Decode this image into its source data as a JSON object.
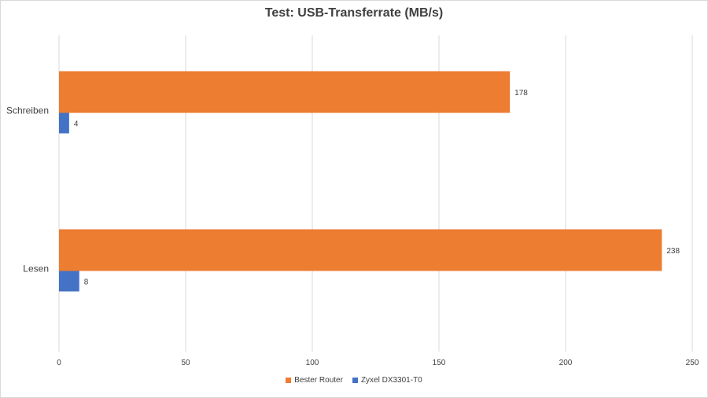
{
  "chart_data": {
    "type": "bar",
    "orientation": "horizontal",
    "title": "Test: USB-Transferrate (MB/s)",
    "xlabel": "",
    "ylabel": "",
    "xlim": [
      0,
      250
    ],
    "x_ticks": [
      "0",
      "50",
      "100",
      "150",
      "200",
      "250"
    ],
    "categories": [
      "Schreiben",
      "Lesen"
    ],
    "series": [
      {
        "name": "Bester Router",
        "values": [
          178,
          238
        ],
        "color": "#ED7D31"
      },
      {
        "name": "Zyxel  DX3301-T0",
        "values": [
          4,
          8
        ],
        "color": "#4472C4"
      }
    ],
    "grid": true,
    "legend_position": "bottom",
    "data_labels": true
  }
}
